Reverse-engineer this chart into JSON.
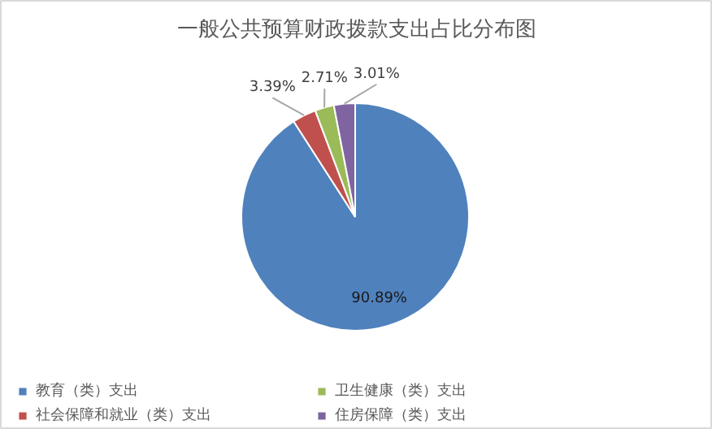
{
  "chart_data": {
    "type": "pie",
    "title": "一般公共预算财政拨款支出占比分布图",
    "categories": [
      "教育（类）支出",
      "社会保障和就业（类）支出",
      "卫生健康（类）支出",
      "住房保障（类）支出"
    ],
    "values": [
      90.89,
      3.39,
      2.71,
      3.01
    ],
    "colors": [
      "#4f81bd",
      "#c0504d",
      "#9bbb59",
      "#8064a2"
    ],
    "value_labels": [
      "90.89%",
      "3.39%",
      "2.71%",
      "3.01%"
    ],
    "legend": "bottom"
  }
}
